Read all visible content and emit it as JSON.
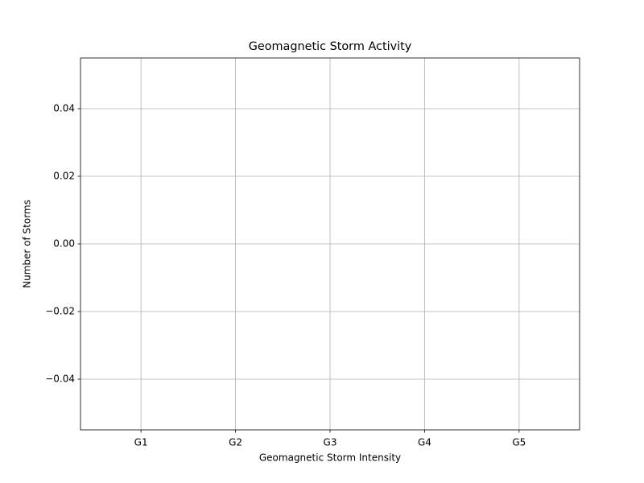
{
  "chart_data": {
    "type": "bar",
    "title": "Geomagnetic Storm Activity",
    "x_label": "Geomagnetic Storm Intensity",
    "y_label": "Number of Storms",
    "categories": [
      "G1",
      "G2",
      "G3",
      "G4",
      "G5"
    ],
    "values": [
      0,
      0,
      0,
      0,
      0
    ],
    "color": "#1f77b4",
    "ylim": [
      -0.055,
      0.055
    ],
    "yticks": [
      {
        "value": -0.04,
        "label": "−0.04"
      },
      {
        "value": -0.02,
        "label": "−0.02"
      },
      {
        "value": 0,
        "label": "0.00"
      },
      {
        "value": 0.02,
        "label": "0.02"
      },
      {
        "value": 0.04,
        "label": "0.04"
      }
    ],
    "grid": true
  }
}
